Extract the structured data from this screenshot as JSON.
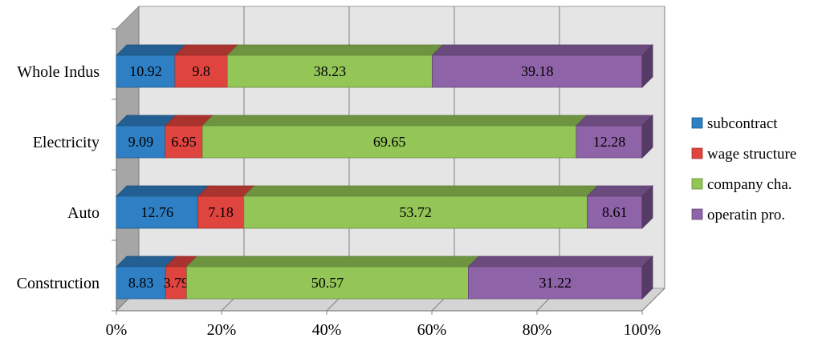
{
  "chart_data": {
    "type": "bar",
    "orientation": "horizontal",
    "stacked": "100%",
    "three_d": true,
    "categories": [
      "Whole Indus",
      "Electricity",
      "Auto",
      "Construction"
    ],
    "series": [
      {
        "name": "subcontract",
        "color": "#2e7fc3",
        "values": [
          10.92,
          9.09,
          12.76,
          8.83
        ]
      },
      {
        "name": "wage structure",
        "color": "#e0443f",
        "values": [
          9.8,
          6.95,
          7.18,
          3.79
        ]
      },
      {
        "name": "company cha.",
        "color": "#93c557",
        "values": [
          38.23,
          69.65,
          53.72,
          50.57
        ]
      },
      {
        "name": "operatin pro.",
        "color": "#8e63a8",
        "values": [
          39.18,
          12.28,
          8.61,
          31.22
        ]
      }
    ],
    "x_ticks": [
      "0%",
      "20%",
      "40%",
      "60%",
      "80%",
      "100%"
    ],
    "xlim": [
      0,
      100
    ],
    "grid": "vertical",
    "legend_position": "right"
  }
}
